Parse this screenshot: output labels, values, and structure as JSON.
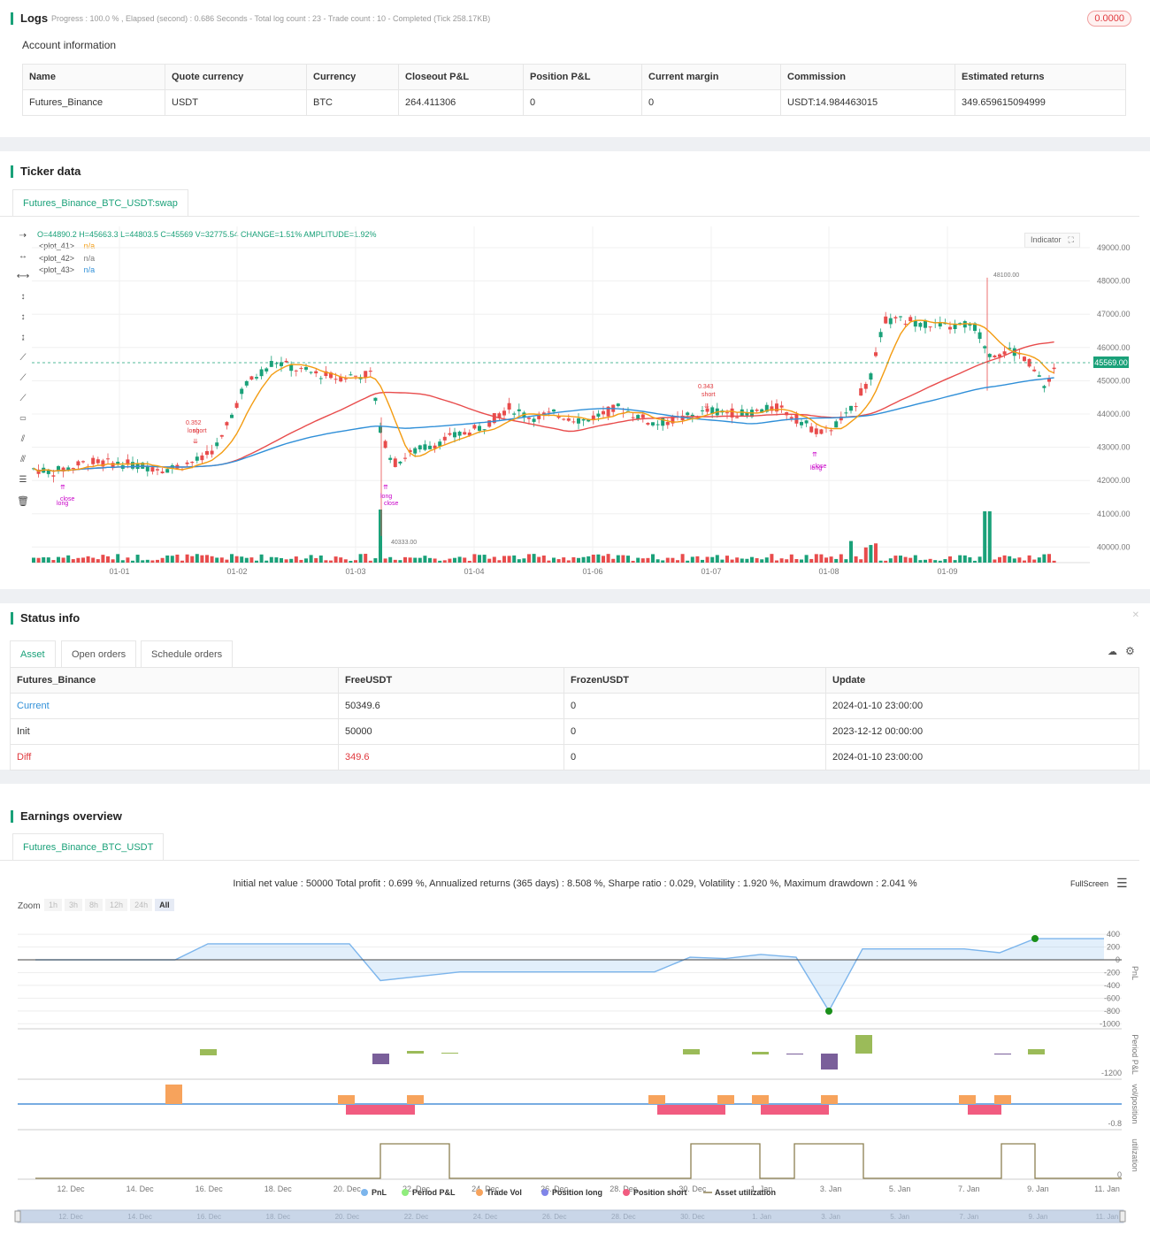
{
  "logs": {
    "title": "Logs",
    "progress_text": "Progress : 100.0 % , Elapsed (second) : 0.686  Seconds - Total log count : 23 - Trade count : 10 - Completed (Tick 258.17KB)",
    "badge": "0.0000"
  },
  "account": {
    "title": "Account information",
    "headers": [
      "Name",
      "Quote currency",
      "Currency",
      "Closeout P&L",
      "Position P&L",
      "Current margin",
      "Commission",
      "Estimated returns"
    ],
    "row": [
      "Futures_Binance",
      "USDT",
      "BTC",
      "264.411306",
      "0",
      "0",
      "USDT:14.984463015",
      "349.659615094999"
    ]
  },
  "ticker": {
    "title": "Ticker data",
    "tab": "Futures_Binance_BTC_USDT:swap",
    "ohlc_text": "O=44890.2 H=45663.3 L=44803.5 C=45569 V=32775.54 CHANGE=1.51% AMPLITUDE=1.92%",
    "legend": [
      {
        "name": "<plot_41>",
        "value": "n/a",
        "color": "#f39c12"
      },
      {
        "name": "<plot_42>",
        "value": "n/a",
        "color": "#7a7a7a"
      },
      {
        "name": "<plot_43>",
        "value": "n/a",
        "color": "#2f8fd8"
      }
    ],
    "indicator_btn": "Indicator",
    "price_badge": "45569.00",
    "y_ticks": [
      "49000.00",
      "48000.00",
      "47000.00",
      "46000.00",
      "45000.00",
      "44000.00",
      "43000.00",
      "42000.00",
      "41000.00",
      "40000.00"
    ],
    "x_ticks": [
      "01-01",
      "01-02",
      "01-03",
      "01-04",
      "01-06",
      "01-07",
      "01-08",
      "01-09"
    ],
    "annotations": {
      "high": "48100.00",
      "low": "40333.00"
    },
    "trade_labels": [
      "0.352",
      "long",
      "short",
      "close",
      "long",
      "close",
      "long",
      "0.343",
      "short",
      "long",
      "close",
      "long"
    ]
  },
  "status": {
    "title": "Status info",
    "tabs": [
      "Asset",
      "Open orders",
      "Schedule orders"
    ],
    "headers": [
      "Futures_Binance",
      "FreeUSDT",
      "FrozenUSDT",
      "Update"
    ],
    "rows": [
      {
        "label": "Current",
        "free": "50349.6",
        "frozen": "0",
        "update": "2024-01-10 23:00:00",
        "color": "#2f8fd8"
      },
      {
        "label": "Init",
        "free": "50000",
        "frozen": "0",
        "update": "2023-12-12 00:00:00",
        "color": "#333333"
      },
      {
        "label": "Diff",
        "free": "349.6",
        "frozen": "0",
        "update": "2024-01-10 23:00:00",
        "color": "#e0393e"
      }
    ]
  },
  "earnings": {
    "title": "Earnings overview",
    "tab": "Futures_Binance_BTC_USDT",
    "summary": "Initial net value : 50000 Total profit : 0.699 %, Annualized returns (365 days) : 8.508 %, Sharpe ratio : 0.029, Volatility : 1.920 %, Maximum drawdown : 2.041 %",
    "fullscreen": "FullScreen",
    "zoom_label": "Zoom",
    "zoom_opts": [
      "1h",
      "3h",
      "8h",
      "12h",
      "24h",
      "All"
    ],
    "pnl_ticks": [
      "400",
      "200",
      "0",
      "-200",
      "-400",
      "-600",
      "-800",
      "-1000"
    ],
    "axis_titles": [
      "PnL",
      "Period P&L",
      "vol/position",
      "utilization"
    ],
    "period_tick": "-1200",
    "vol_tick": "-0.8",
    "util_tick": "0",
    "x_ticks": [
      "12. Dec",
      "14. Dec",
      "16. Dec",
      "18. Dec",
      "20. Dec",
      "22. Dec",
      "24. Dec",
      "26. Dec",
      "28. Dec",
      "30. Dec",
      "1. Jan",
      "3. Jan",
      "5. Jan",
      "7. Jan",
      "9. Jan",
      "11. Jan"
    ],
    "legend": [
      {
        "name": "PnL",
        "color": "#7cb5ec"
      },
      {
        "name": "Period P&L",
        "color": "#90ed7d"
      },
      {
        "name": "Trade Vol",
        "color": "#f7a35c"
      },
      {
        "name": "Position long",
        "color": "#8085e9"
      },
      {
        "name": "Position short",
        "color": "#f15c80"
      },
      {
        "name": "Asset utilization",
        "color": "#8d8052"
      }
    ]
  }
}
